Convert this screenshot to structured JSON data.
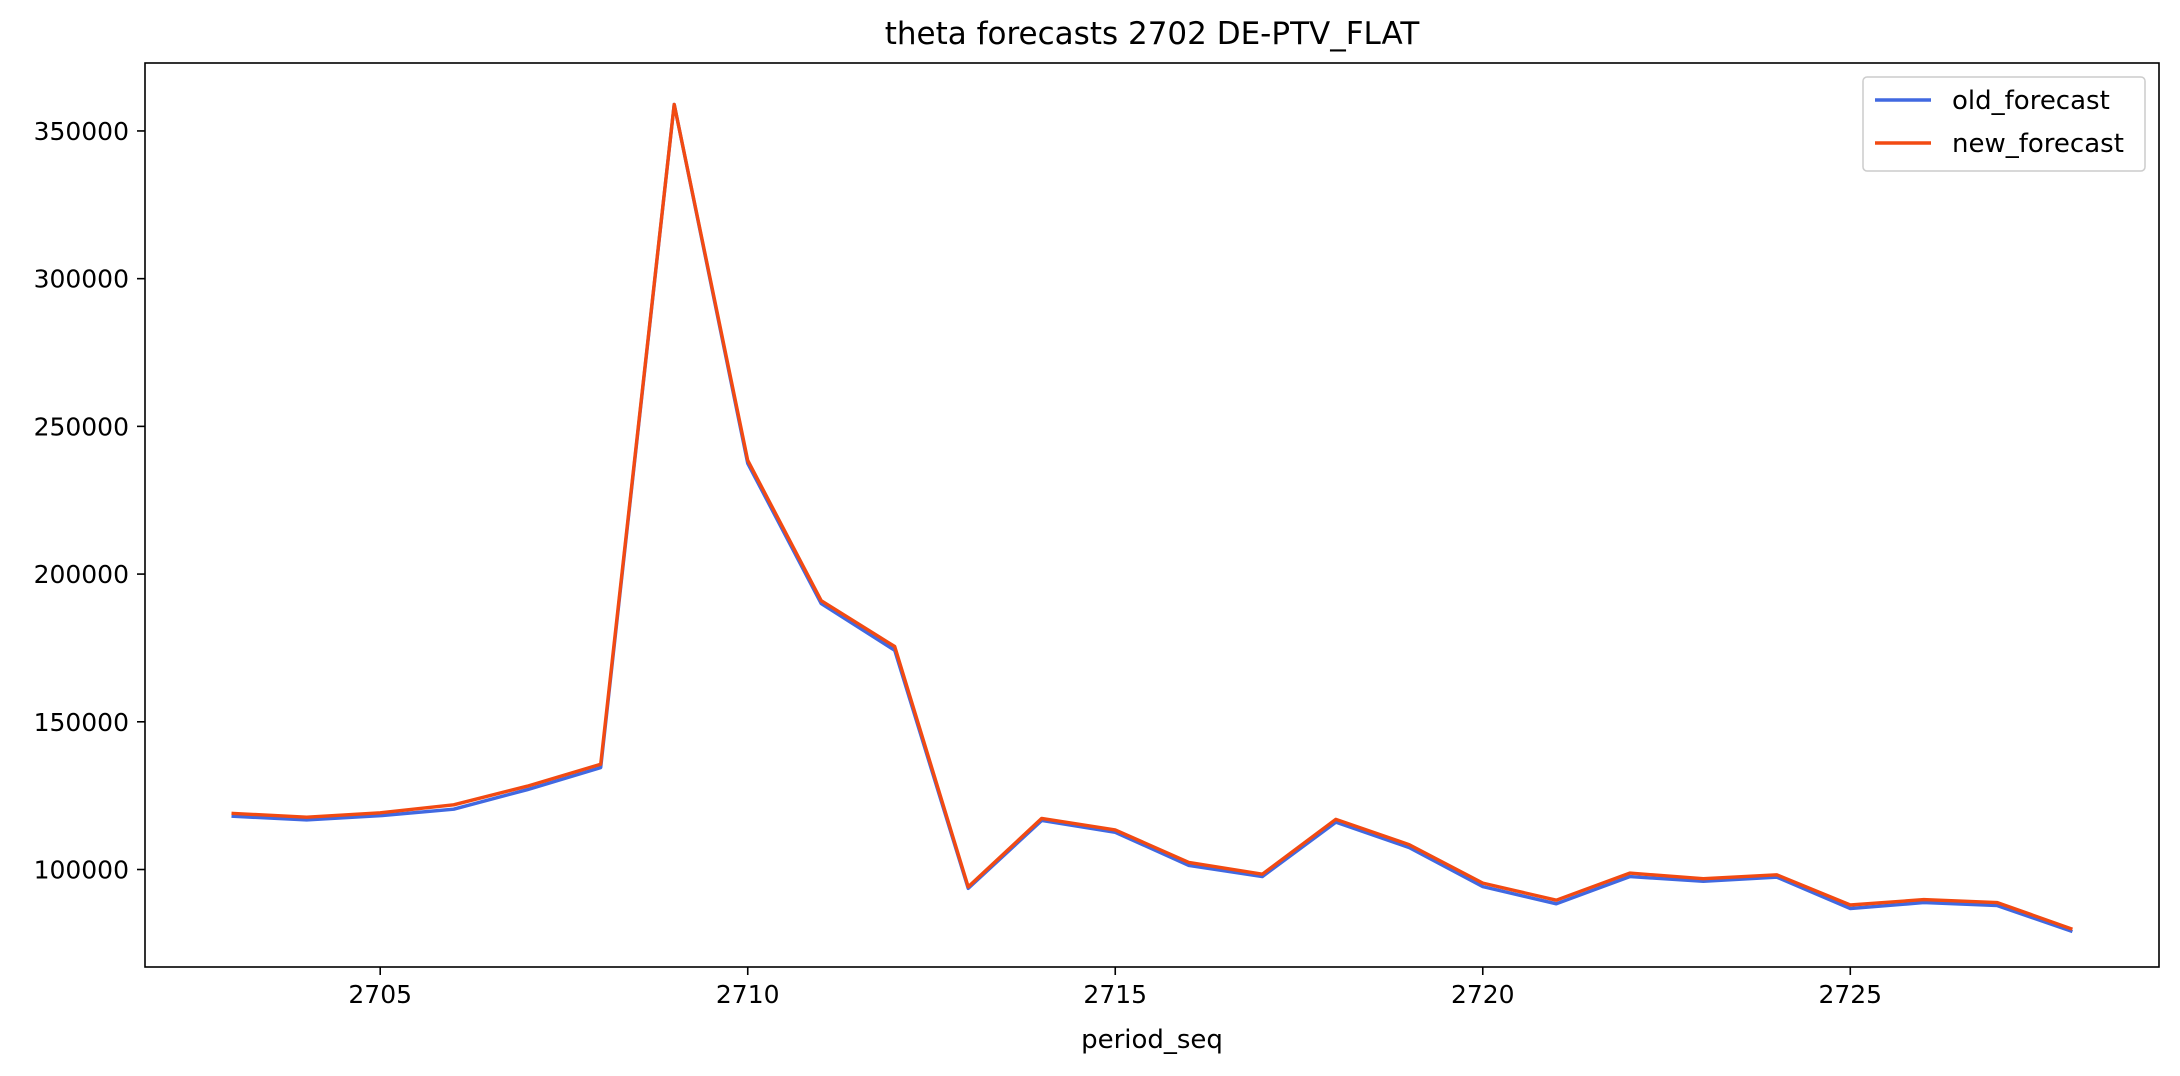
{
  "chart_data": {
    "type": "line",
    "title": "theta forecasts 2702 DE-PTV_FLAT",
    "xlabel": "period_seq",
    "ylabel": "",
    "xlim": [
      2701.8,
      2729.2
    ],
    "ylim": [
      67000,
      373000
    ],
    "xticks": [
      2705,
      2710,
      2715,
      2720,
      2725
    ],
    "yticks": [
      100000,
      150000,
      200000,
      250000,
      300000,
      350000
    ],
    "grid": false,
    "legend_position": "top-right",
    "x": [
      2703,
      2704,
      2705,
      2706,
      2707,
      2708,
      2709,
      2710,
      2711,
      2712,
      2713,
      2714,
      2715,
      2716,
      2717,
      2718,
      2719,
      2720,
      2721,
      2722,
      2723,
      2724,
      2725,
      2726,
      2727,
      2728
    ],
    "series": [
      {
        "name": "old_forecast",
        "color": "#4169e1",
        "values": [
          118000,
          116800,
          118200,
          120400,
          127000,
          134500,
          359000,
          237500,
          190000,
          174200,
          93600,
          116600,
          112600,
          101400,
          97600,
          116000,
          107400,
          94200,
          88400,
          97600,
          96000,
          97400,
          86800,
          88800,
          87800,
          79200
        ]
      },
      {
        "name": "new_forecast",
        "color": "#f24a12",
        "values": [
          119000,
          117700,
          119200,
          121900,
          128200,
          135600,
          359000,
          238500,
          191000,
          175500,
          94100,
          117300,
          113400,
          102400,
          98400,
          117000,
          108400,
          95400,
          89600,
          98800,
          96900,
          98200,
          88000,
          89800,
          88800,
          80000
        ]
      }
    ]
  }
}
